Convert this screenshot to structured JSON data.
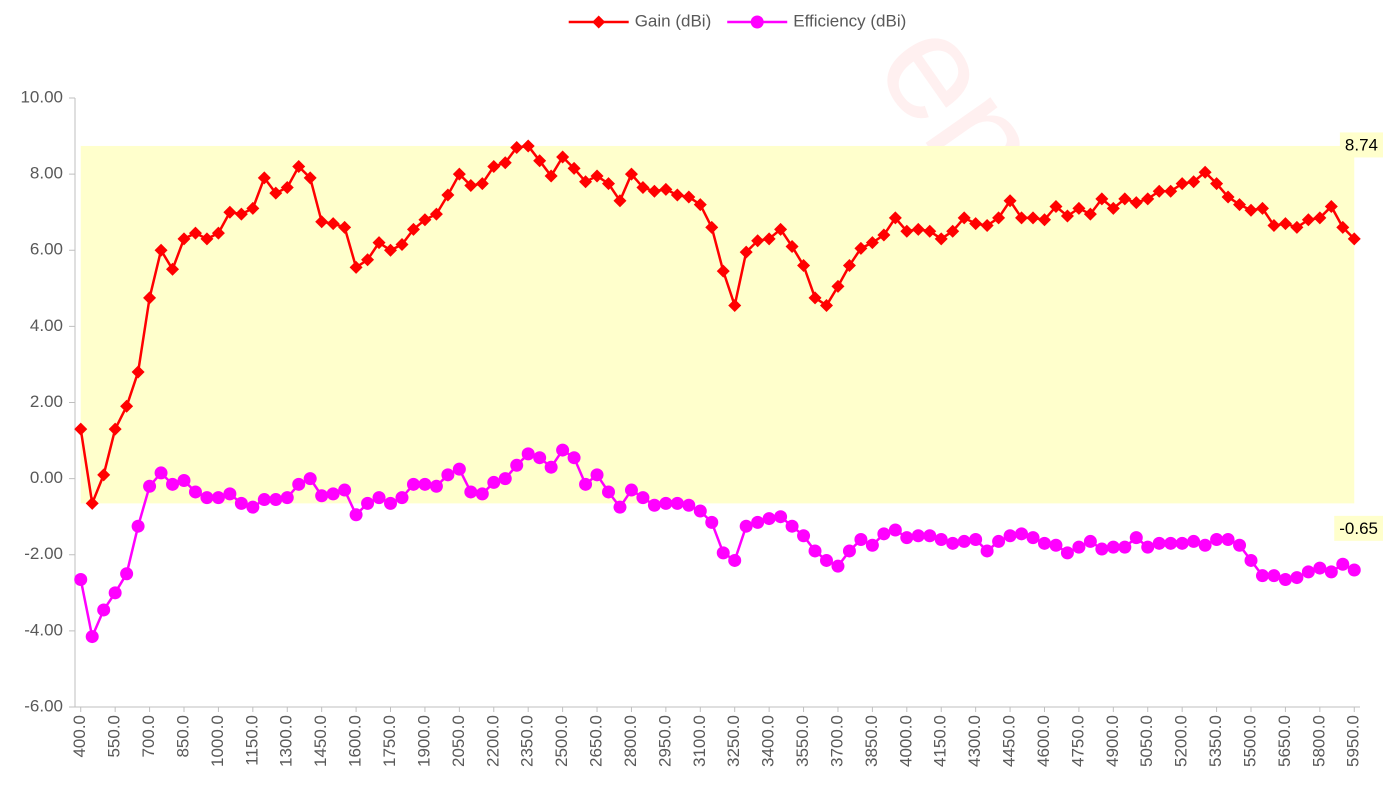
{
  "chart_data": {
    "type": "line",
    "categories": [
      "400.0",
      null,
      null,
      "550.0",
      null,
      null,
      "700.0",
      null,
      null,
      "850.0",
      null,
      null,
      "1000.0",
      null,
      null,
      "1150.0",
      null,
      null,
      "1300.0",
      null,
      null,
      "1450.0",
      null,
      null,
      "1600.0",
      null,
      null,
      "1750.0",
      null,
      null,
      "1900.0",
      null,
      null,
      "2050.0",
      null,
      null,
      "2200.0",
      null,
      null,
      "2350.0",
      null,
      null,
      "2500.0",
      null,
      null,
      "2650.0",
      null,
      null,
      "2800.0",
      null,
      null,
      "2950.0",
      null,
      null,
      "3100.0",
      null,
      null,
      "3250.0",
      null,
      null,
      "3400.0",
      null,
      null,
      "3550.0",
      null,
      null,
      "3700.0",
      null,
      null,
      "3850.0",
      null,
      null,
      "4000.0",
      null,
      null,
      "4150.0",
      null,
      null,
      "4300.0",
      null,
      null,
      "4450.0",
      null,
      null,
      "4600.0",
      null,
      null,
      "4750.0",
      null,
      null,
      "4900.0",
      null,
      null,
      "5050.0",
      null,
      null,
      "5200.0",
      null,
      null,
      "5350.0",
      null,
      null,
      "5500.0",
      null,
      null,
      "5650.0",
      null,
      null,
      "5800.0",
      null,
      null,
      "5950.0"
    ],
    "series": [
      {
        "name": "Gain (dBi)",
        "color": "#ff0000",
        "marker": "diamond",
        "values": [
          1.3,
          -0.65,
          0.1,
          1.3,
          1.9,
          2.8,
          4.75,
          6.0,
          5.5,
          6.3,
          6.45,
          6.3,
          6.45,
          7.0,
          6.95,
          7.1,
          7.9,
          7.5,
          7.65,
          8.2,
          7.9,
          6.75,
          6.7,
          6.6,
          5.55,
          5.75,
          6.2,
          6.0,
          6.15,
          6.55,
          6.8,
          6.95,
          7.45,
          8.0,
          7.7,
          7.75,
          8.2,
          8.3,
          8.7,
          8.74,
          8.35,
          7.95,
          8.45,
          8.15,
          7.8,
          7.95,
          7.75,
          7.3,
          8.0,
          7.65,
          7.55,
          7.6,
          7.45,
          7.4,
          7.2,
          6.6,
          5.45,
          4.55,
          5.95,
          6.25,
          6.3,
          6.55,
          6.1,
          5.6,
          4.75,
          4.55,
          5.05,
          5.6,
          6.05,
          6.2,
          6.4,
          6.85,
          6.5,
          6.55,
          6.5,
          6.3,
          6.5,
          6.85,
          6.7,
          6.65,
          6.85,
          7.3,
          6.85,
          6.85,
          6.8,
          7.15,
          6.9,
          7.1,
          6.95,
          7.35,
          7.1,
          7.35,
          7.25,
          7.35,
          7.55,
          7.55,
          7.75,
          7.8,
          8.05,
          7.75,
          7.4,
          7.2,
          7.05,
          7.1,
          6.65,
          6.7,
          6.6,
          6.8,
          6.85,
          7.15,
          6.6,
          6.3
        ]
      },
      {
        "name": "Efficiency (dBi)",
        "color": "#ff00ff",
        "marker": "circle",
        "values": [
          -2.65,
          -4.15,
          -3.45,
          -3.0,
          -2.5,
          -1.25,
          -0.2,
          0.15,
          -0.15,
          -0.05,
          -0.35,
          -0.5,
          -0.5,
          -0.4,
          -0.65,
          -0.75,
          -0.55,
          -0.55,
          -0.5,
          -0.15,
          0.0,
          -0.45,
          -0.4,
          -0.3,
          -0.95,
          -0.65,
          -0.5,
          -0.65,
          -0.5,
          -0.15,
          -0.15,
          -0.2,
          0.1,
          0.25,
          -0.35,
          -0.4,
          -0.1,
          0.0,
          0.35,
          0.65,
          0.55,
          0.3,
          0.75,
          0.55,
          -0.15,
          0.1,
          -0.35,
          -0.75,
          -0.3,
          -0.5,
          -0.7,
          -0.65,
          -0.65,
          -0.7,
          -0.85,
          -1.15,
          -1.95,
          -2.15,
          -1.25,
          -1.15,
          -1.05,
          -1.0,
          -1.25,
          -1.5,
          -1.9,
          -2.15,
          -2.3,
          -1.9,
          -1.6,
          -1.75,
          -1.45,
          -1.35,
          -1.55,
          -1.5,
          -1.5,
          -1.6,
          -1.7,
          -1.65,
          -1.6,
          -1.9,
          -1.65,
          -1.5,
          -1.45,
          -1.55,
          -1.7,
          -1.75,
          -1.95,
          -1.8,
          -1.65,
          -1.85,
          -1.8,
          -1.8,
          -1.55,
          -1.8,
          -1.7,
          -1.7,
          -1.7,
          -1.65,
          -1.75,
          -1.6,
          -1.6,
          -1.75,
          -2.15,
          -2.55,
          -2.55,
          -2.65,
          -2.6,
          -2.45,
          -2.35,
          -2.45,
          -2.25,
          -2.4
        ]
      }
    ],
    "band": [
      -0.65,
      8.74
    ],
    "band_color": "#ffffcc",
    "ylim": [
      -6,
      10
    ],
    "yticks": [
      {
        "value": -6,
        "label": "-6.00"
      },
      {
        "value": -4,
        "label": "-4.00"
      },
      {
        "value": -2,
        "label": "-2.00"
      },
      {
        "value": 0,
        "label": "0.00"
      },
      {
        "value": 2,
        "label": "2.00"
      },
      {
        "value": 4,
        "label": "4.00"
      },
      {
        "value": 6,
        "label": "6.00"
      },
      {
        "value": 8,
        "label": "8.00"
      },
      {
        "value": 10,
        "label": "10.00"
      }
    ],
    "grid": false,
    "legend": "top",
    "watermark": "enna"
  }
}
